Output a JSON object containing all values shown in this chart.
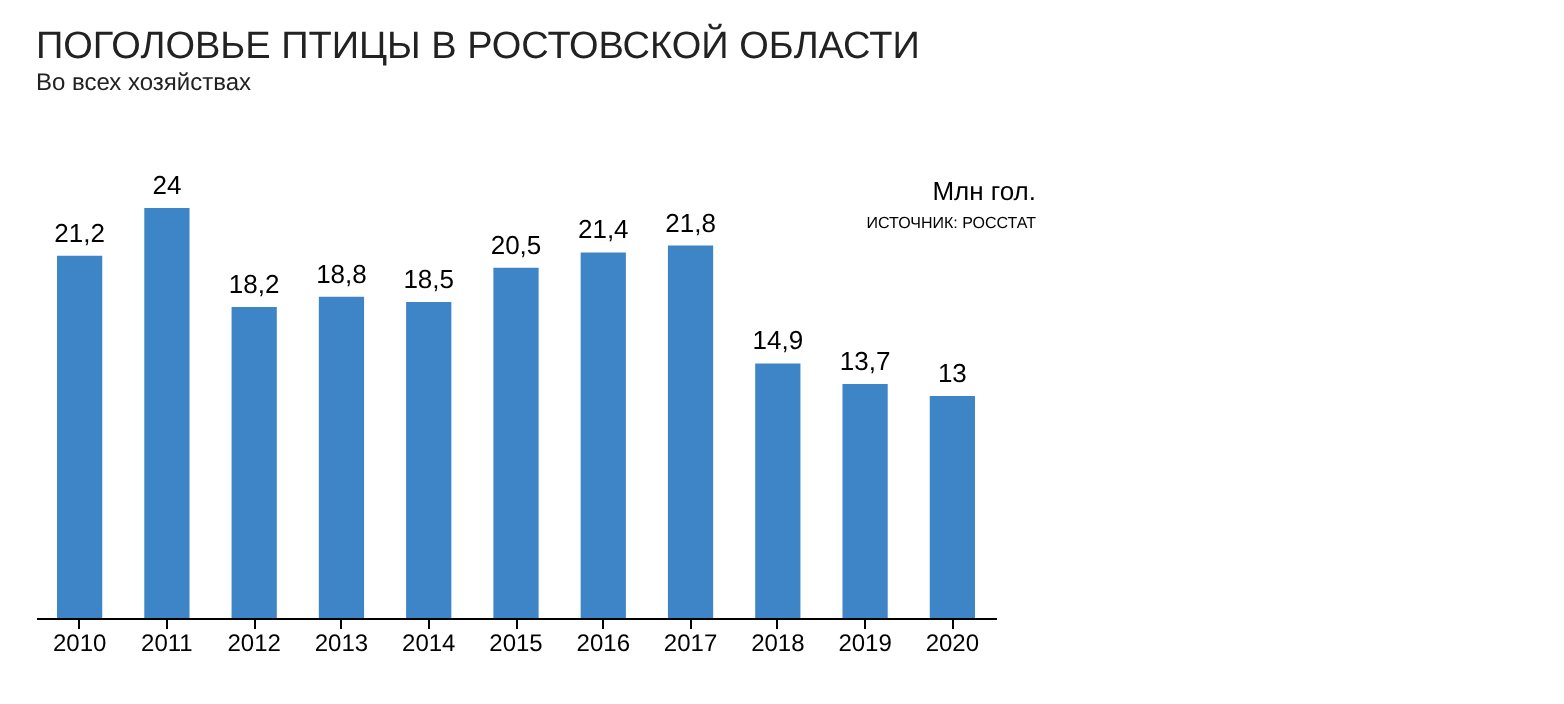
{
  "chart_data": {
    "type": "bar",
    "title": "ПОГОЛОВЬЕ ПТИЦЫ В РОСТОВСКОЙ ОБЛАСТИ",
    "subtitle": "Во всех хозяйствах",
    "categories": [
      "2010",
      "2011",
      "2012",
      "2013",
      "2014",
      "2015",
      "2016",
      "2017",
      "2018",
      "2019",
      "2020"
    ],
    "values": [
      21.2,
      24,
      18.2,
      18.8,
      18.5,
      20.5,
      21.4,
      21.8,
      14.9,
      13.7,
      13
    ],
    "value_labels": [
      "21,2",
      "24",
      "18,2",
      "18,8",
      "18,5",
      "20,5",
      "21,4",
      "21,8",
      "14,9",
      "13,7",
      "13"
    ],
    "color": "#3d85c6",
    "tick_labels": "x",
    "grid": false,
    "annotations": [
      "Млн гол.",
      "ИСТОЧНИК: РОССТАТ"
    ]
  }
}
